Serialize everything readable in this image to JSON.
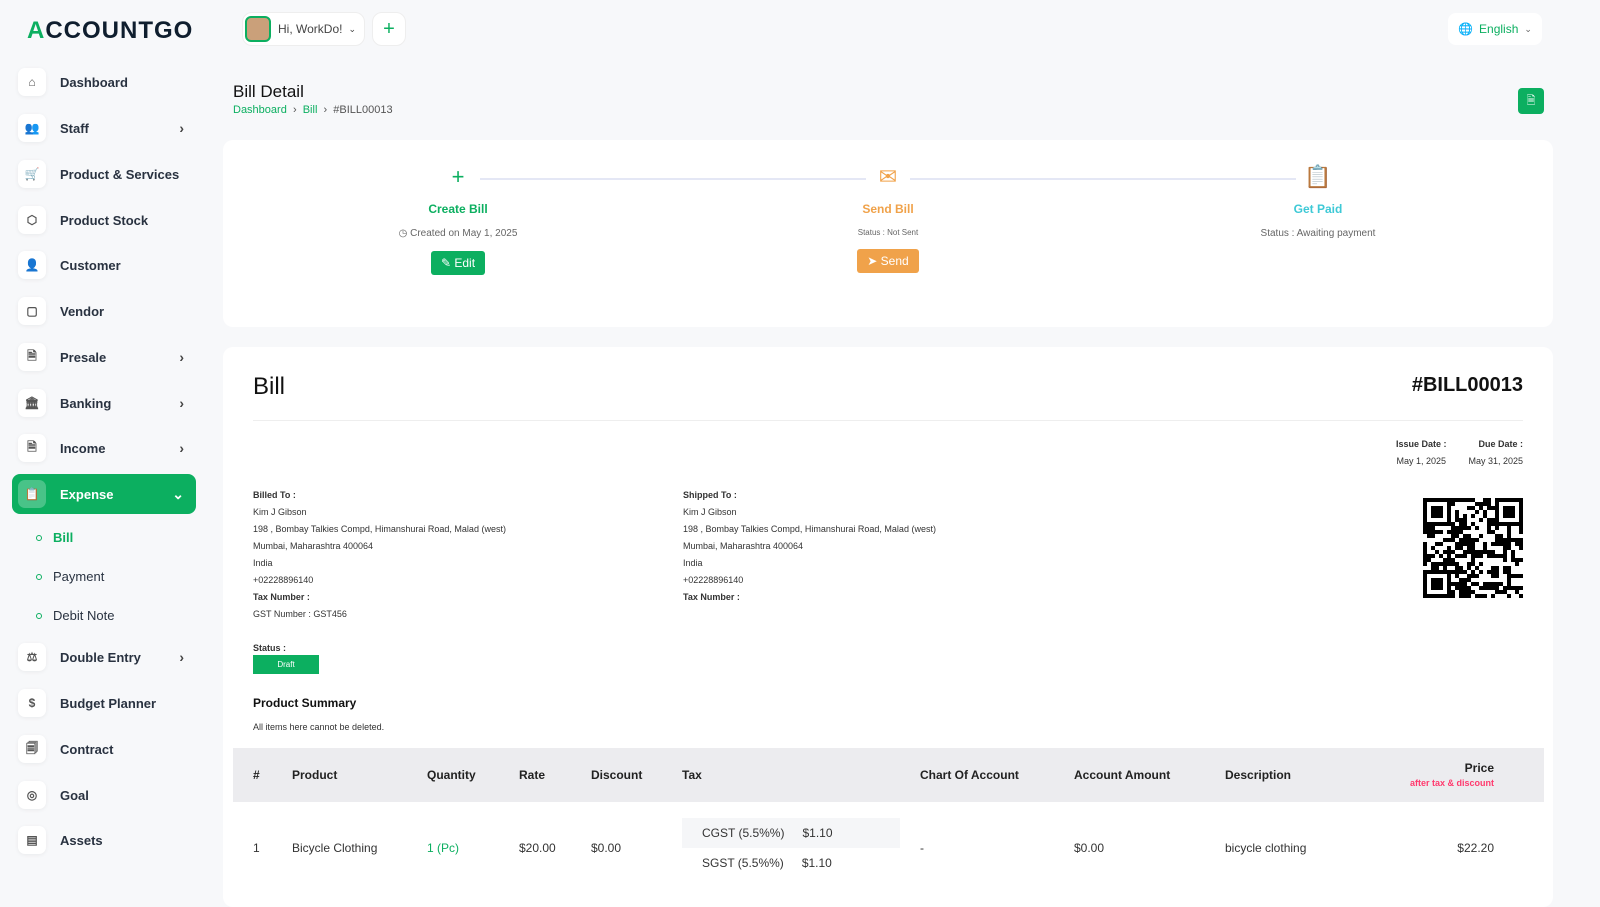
{
  "brand": {
    "logo_a": "A",
    "logo_rest": "CCOUNTGO"
  },
  "header": {
    "greeting": "Hi, WorkDo!",
    "language": "English"
  },
  "sidebar": {
    "items": [
      {
        "label": "Dashboard",
        "icon": "home-icon",
        "chev": false
      },
      {
        "label": "Staff",
        "icon": "users-icon",
        "chev": true
      },
      {
        "label": "Product & Services",
        "icon": "cart-icon",
        "chev": false
      },
      {
        "label": "Product Stock",
        "icon": "box-icon",
        "chev": false
      },
      {
        "label": "Customer",
        "icon": "user-plus-icon",
        "chev": false
      },
      {
        "label": "Vendor",
        "icon": "note-icon",
        "chev": false
      },
      {
        "label": "Presale",
        "icon": "file-icon",
        "chev": true
      },
      {
        "label": "Banking",
        "icon": "bank-icon",
        "chev": true
      },
      {
        "label": "Income",
        "icon": "file-text-icon",
        "chev": true
      },
      {
        "label": "Expense",
        "icon": "clipboard-icon",
        "chev": true,
        "active": true
      },
      {
        "label": "Double Entry",
        "icon": "scale-icon",
        "chev": true
      },
      {
        "label": "Budget Planner",
        "icon": "coins-icon",
        "chev": false
      },
      {
        "label": "Contract",
        "icon": "contract-icon",
        "chev": false
      },
      {
        "label": "Goal",
        "icon": "target-icon",
        "chev": false
      },
      {
        "label": "Assets",
        "icon": "calculator-icon",
        "chev": false
      }
    ],
    "subitems": [
      "Bill",
      "Payment",
      "Debit Note"
    ]
  },
  "page": {
    "title": "Bill Detail",
    "breadcrumb": [
      "Dashboard",
      "Bill",
      "#BILL00013"
    ]
  },
  "progress": {
    "create": {
      "title": "Create Bill",
      "sub": "Created on May 1, 2025",
      "button": "Edit"
    },
    "send": {
      "title": "Send Bill",
      "sub": "Status : Not Sent",
      "button": "Send"
    },
    "paid": {
      "title": "Get Paid",
      "sub": "Status : Awaiting payment"
    }
  },
  "bill": {
    "heading": "Bill",
    "number": "#BILL00013",
    "issue_label": "Issue Date :",
    "issue_date": "May 1, 2025",
    "due_label": "Due Date :",
    "due_date": "May 31, 2025",
    "billed": {
      "label": "Billed To :",
      "name": "Kim J Gibson",
      "addr1": "198 , Bombay Talkies Compd, Himanshurai Road, Malad (west)",
      "addr2": "Mumbai, Maharashtra 400064",
      "country": "India",
      "phone": "+02228896140",
      "tax_label": "Tax Number :",
      "gst": "GST Number : GST456"
    },
    "shipped": {
      "label": "Shipped To :",
      "name": "Kim J Gibson",
      "addr1": "198 , Bombay Talkies Compd, Himanshurai Road, Malad (west)",
      "addr2": "Mumbai, Maharashtra 400064",
      "country": "India",
      "phone": "+02228896140",
      "tax_label": "Tax Number :"
    },
    "status_label": "Status :",
    "status": "Draft",
    "summary_title": "Product Summary",
    "summary_note": "All items here cannot be deleted."
  },
  "table": {
    "headers": [
      "#",
      "Product",
      "Quantity",
      "Rate",
      "Discount",
      "Tax",
      "Chart Of Account",
      "Account Amount",
      "Description",
      "Price"
    ],
    "price_note": "after tax & discount",
    "rows": [
      {
        "no": "1",
        "product": "Bicycle Clothing",
        "qty": "1 (Pc)",
        "rate": "$20.00",
        "discount": "$0.00",
        "taxes": [
          {
            "name": "CGST (5.5%%)",
            "amt": "$1.10"
          },
          {
            "name": "SGST (5.5%%)",
            "amt": "$1.10"
          }
        ],
        "account": "-",
        "account_amount": "$0.00",
        "description": "bicycle clothing",
        "price": "$22.20"
      }
    ]
  },
  "colors": {
    "accent": "#0caf60",
    "warning": "#f0a24a",
    "info": "#3ec9d6",
    "danger": "#ff3a6e"
  }
}
